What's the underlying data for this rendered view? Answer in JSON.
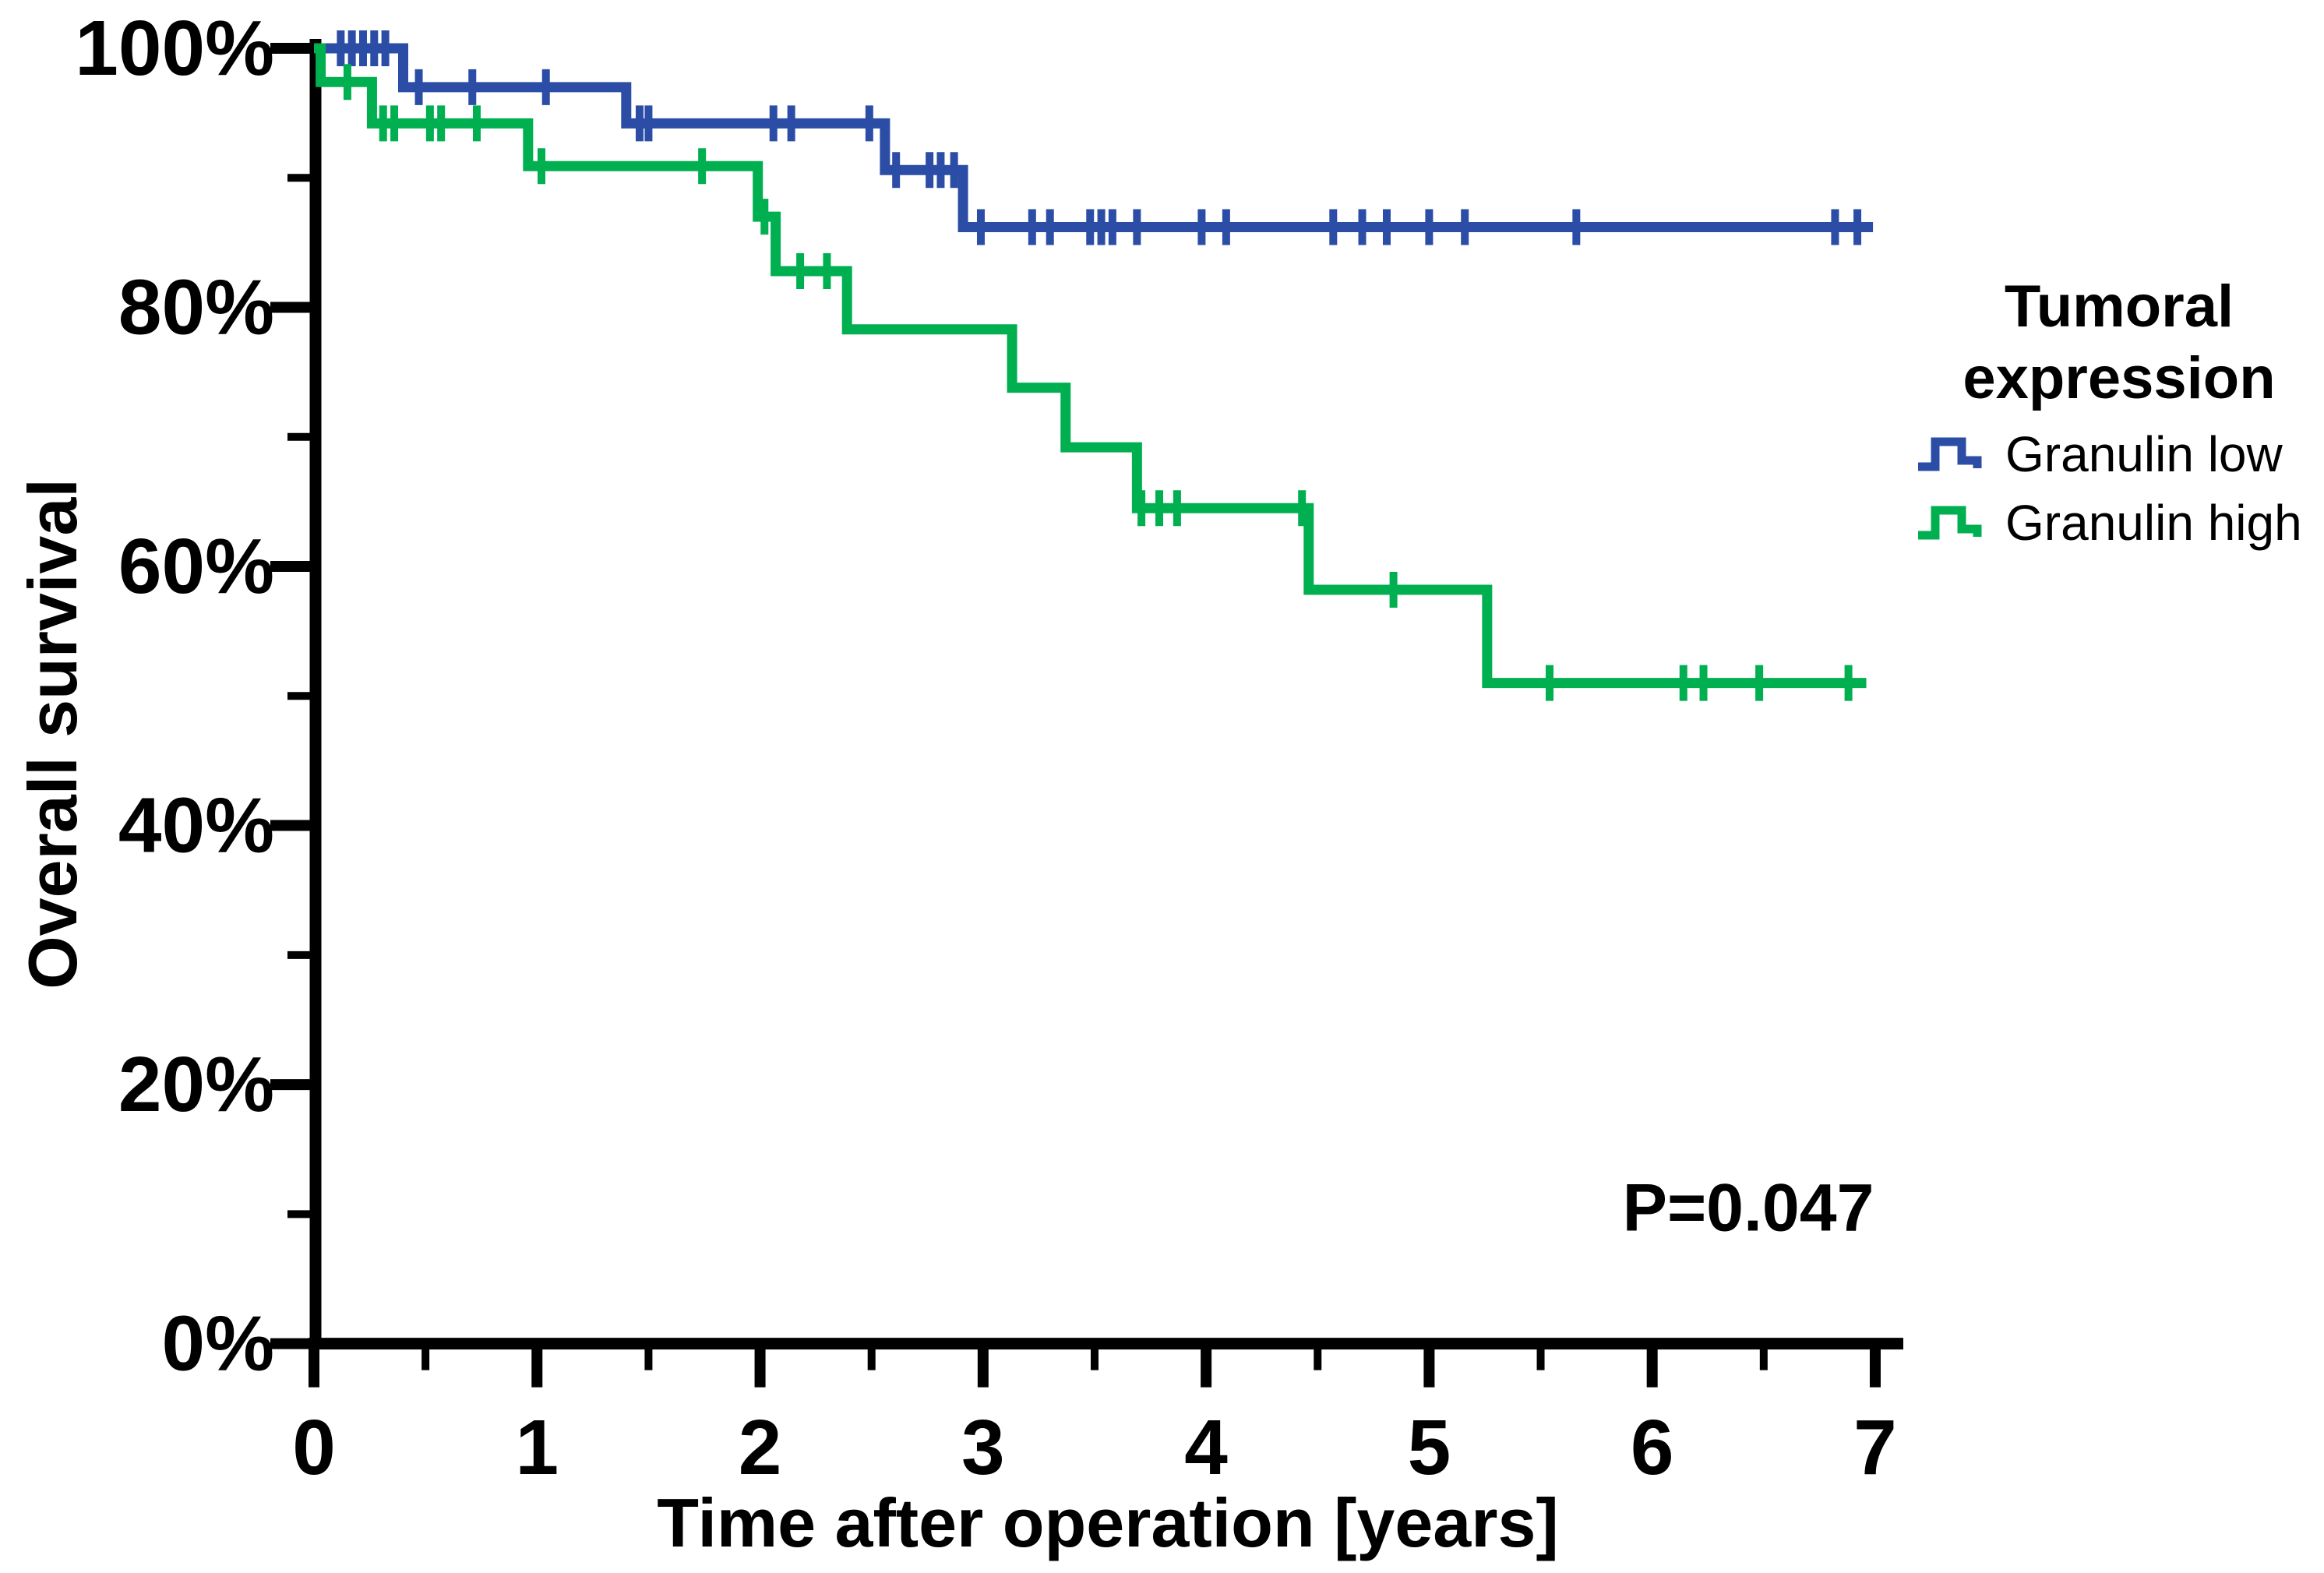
{
  "figure": {
    "p_value": "P=0.047",
    "x_axis": {
      "label": "Time after operation [years]",
      "tick_labels": [
        "0",
        "1",
        "2",
        "3",
        "4",
        "5",
        "6",
        "7"
      ]
    },
    "y_axis": {
      "label": "Overall survival",
      "tick_labels": [
        "0%",
        "20%",
        "40%",
        "60%",
        "80%",
        "100%"
      ]
    },
    "legend": {
      "title": "Tumoral expression",
      "items": [
        {
          "label": "Granulin low",
          "color": "#2b4da5"
        },
        {
          "label": "Granulin high",
          "color": "#00b050"
        }
      ]
    }
  },
  "chart_data": {
    "type": "line",
    "subtype": "kaplan-meier-step",
    "title": "",
    "xlabel": "Time after operation [years]",
    "ylabel": "Overall survival",
    "xlim": [
      0,
      7.07
    ],
    "ylim": [
      0,
      100
    ],
    "x_ticks": [
      0,
      1,
      2,
      3,
      4,
      5,
      6,
      7
    ],
    "x_minor_ticks": [
      0.5,
      1.5,
      2.5,
      3.5,
      4.5,
      5.5,
      6.5
    ],
    "y_ticks": [
      0,
      20,
      40,
      60,
      80,
      100
    ],
    "y_minor_ticks": [
      10,
      30,
      50,
      70,
      90
    ],
    "grid": false,
    "legend_position": "right",
    "legend_title": "Tumoral expression",
    "axis_color": "#000000",
    "series": [
      {
        "name": "Granulin low",
        "color": "#2b4da5",
        "steps": [
          [
            0,
            100
          ],
          [
            0.4,
            97.0
          ],
          [
            1.4,
            94.2
          ],
          [
            2.56,
            90.6
          ],
          [
            2.91,
            86.2
          ]
        ],
        "end_time": 6.99,
        "censor_marks": [
          [
            0.12,
            100
          ],
          [
            0.17,
            100
          ],
          [
            0.22,
            100
          ],
          [
            0.27,
            100
          ],
          [
            0.32,
            100
          ],
          [
            0.47,
            97.0
          ],
          [
            0.71,
            97.0
          ],
          [
            1.04,
            97.0
          ],
          [
            1.46,
            94.2
          ],
          [
            1.5,
            94.2
          ],
          [
            2.06,
            94.2
          ],
          [
            2.14,
            94.2
          ],
          [
            2.49,
            94.2
          ],
          [
            2.61,
            90.6
          ],
          [
            2.76,
            90.6
          ],
          [
            2.81,
            90.6
          ],
          [
            2.87,
            90.6
          ],
          [
            2.99,
            86.2
          ],
          [
            3.22,
            86.2
          ],
          [
            3.3,
            86.2
          ],
          [
            3.48,
            86.2
          ],
          [
            3.53,
            86.2
          ],
          [
            3.58,
            86.2
          ],
          [
            3.69,
            86.2
          ],
          [
            3.98,
            86.2
          ],
          [
            4.09,
            86.2
          ],
          [
            4.57,
            86.2
          ],
          [
            4.7,
            86.2
          ],
          [
            4.81,
            86.2
          ],
          [
            5.0,
            86.2
          ],
          [
            5.16,
            86.2
          ],
          [
            5.66,
            86.2
          ],
          [
            6.82,
            86.2
          ],
          [
            6.92,
            86.2
          ]
        ]
      },
      {
        "name": "Granulin high",
        "color": "#00b050",
        "steps": [
          [
            0,
            100
          ],
          [
            0.03,
            97.4
          ],
          [
            0.26,
            94.2
          ],
          [
            0.96,
            90.9
          ],
          [
            1.99,
            87.0
          ],
          [
            2.07,
            82.8
          ],
          [
            2.39,
            78.3
          ],
          [
            3.13,
            73.8
          ],
          [
            3.37,
            69.2
          ],
          [
            3.69,
            64.5
          ],
          [
            4.46,
            58.2
          ],
          [
            5.26,
            51.0
          ]
        ],
        "end_time": 6.96,
        "censor_marks": [
          [
            0.15,
            97.4
          ],
          [
            0.31,
            94.2
          ],
          [
            0.36,
            94.2
          ],
          [
            0.52,
            94.2
          ],
          [
            0.57,
            94.2
          ],
          [
            0.73,
            94.2
          ],
          [
            1.02,
            90.9
          ],
          [
            1.74,
            90.9
          ],
          [
            2.02,
            87.0
          ],
          [
            2.18,
            82.8
          ],
          [
            2.3,
            82.8
          ],
          [
            3.71,
            64.5
          ],
          [
            3.79,
            64.5
          ],
          [
            3.87,
            64.5
          ],
          [
            4.43,
            64.5
          ],
          [
            4.84,
            58.2
          ],
          [
            5.54,
            51.0
          ],
          [
            6.14,
            51.0
          ],
          [
            6.23,
            51.0
          ],
          [
            6.48,
            51.0
          ],
          [
            6.88,
            51.0
          ]
        ]
      }
    ],
    "annotations": [
      {
        "text": "P=0.047",
        "x": 6.43,
        "y": 10.5
      }
    ]
  }
}
